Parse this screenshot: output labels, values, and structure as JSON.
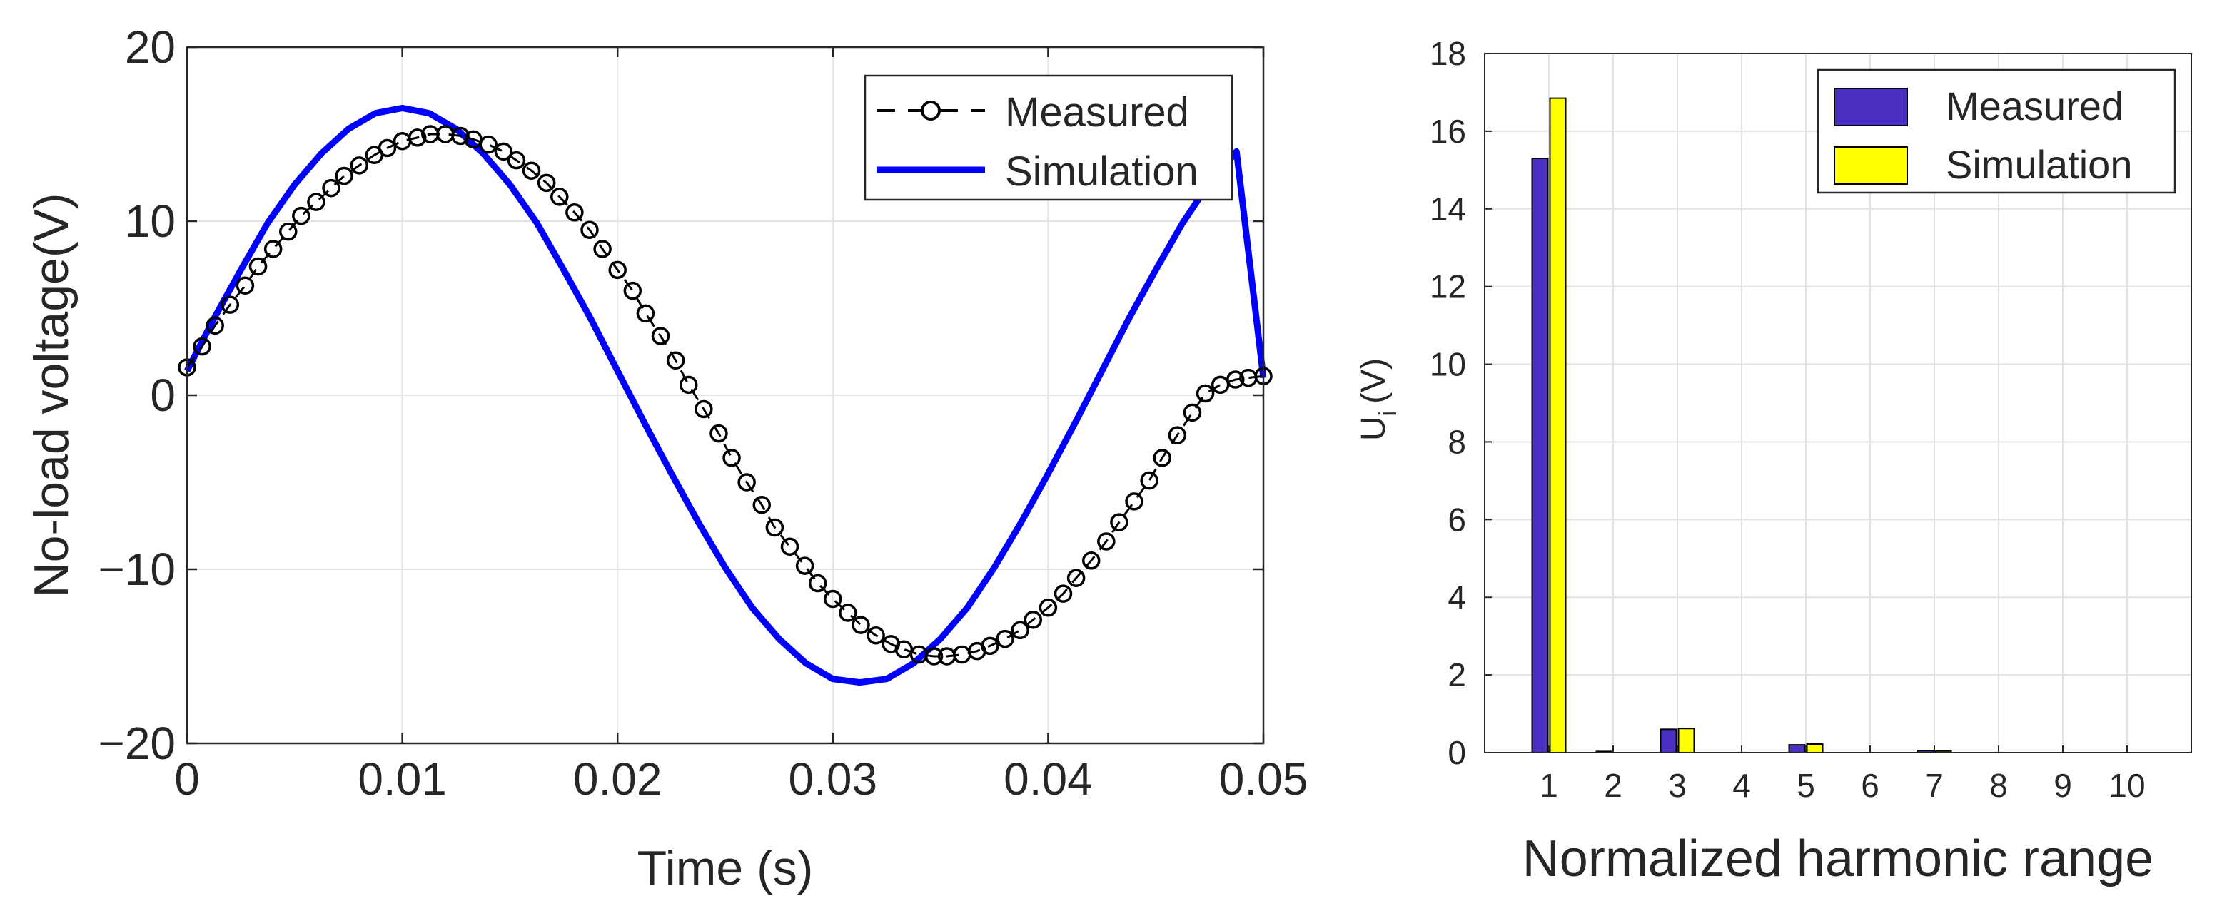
{
  "chart_data": [
    {
      "type": "line",
      "title": "",
      "xlabel": "Time (s)",
      "ylabel": "No-load voltage(V)",
      "xlim": [
        0,
        0.05
      ],
      "ylim": [
        -20,
        20
      ],
      "xticks": [
        0,
        0.01,
        0.02,
        0.03,
        0.04,
        0.05
      ],
      "xtick_labels": [
        "0",
        "0.01",
        "0.02",
        "0.03",
        "0.04",
        "0.05"
      ],
      "yticks": [
        -20,
        -10,
        0,
        10,
        20
      ],
      "ytick_labels": [
        "−20",
        "−10",
        "0",
        "10",
        "20"
      ],
      "grid": true,
      "legend_position": "top-right",
      "series": [
        {
          "name": "Measured",
          "style": "dashed-circle",
          "color": "#000000",
          "x": [
            0,
            0.0007,
            0.0013,
            0.002,
            0.0027,
            0.0033,
            0.004,
            0.0047,
            0.0053,
            0.006,
            0.0067,
            0.0073,
            0.008,
            0.0087,
            0.0093,
            0.01,
            0.0107,
            0.0113,
            0.012,
            0.0127,
            0.0133,
            0.014,
            0.0147,
            0.0153,
            0.016,
            0.0167,
            0.0173,
            0.018,
            0.0187,
            0.0193,
            0.02,
            0.0207,
            0.0213,
            0.022,
            0.0227,
            0.0233,
            0.024,
            0.0247,
            0.0253,
            0.026,
            0.0267,
            0.0273,
            0.028,
            0.0287,
            0.0293,
            0.03,
            0.0307,
            0.0313,
            0.032,
            0.0327,
            0.0333,
            0.034,
            0.0347,
            0.0353,
            0.036,
            0.0367,
            0.0373,
            0.038,
            0.0387,
            0.0393,
            0.04,
            0.0407,
            0.0413,
            0.042,
            0.0427,
            0.0433,
            0.044,
            0.0447,
            0.0453,
            0.046,
            0.0467,
            0.0473,
            0.048,
            0.0487,
            0.0493,
            0.05
          ],
          "y": [
            1.6,
            2.8,
            4.0,
            5.2,
            6.3,
            7.4,
            8.4,
            9.4,
            10.3,
            11.1,
            11.9,
            12.6,
            13.2,
            13.8,
            14.2,
            14.6,
            14.8,
            15.0,
            15.0,
            14.9,
            14.7,
            14.4,
            14.0,
            13.5,
            12.9,
            12.2,
            11.4,
            10.5,
            9.5,
            8.4,
            7.2,
            6.0,
            4.7,
            3.4,
            2.0,
            0.6,
            -0.8,
            -2.2,
            -3.6,
            -5.0,
            -6.3,
            -7.6,
            -8.7,
            -9.8,
            -10.8,
            -11.7,
            -12.5,
            -13.2,
            -13.8,
            -14.3,
            -14.6,
            -14.9,
            -15.0,
            -15.0,
            -14.9,
            -14.7,
            -14.4,
            -14.0,
            -13.5,
            -12.9,
            -12.2,
            -11.4,
            -10.5,
            -9.5,
            -8.4,
            -7.3,
            -6.1,
            -4.9,
            -3.6,
            -2.3,
            -1.0,
            0.1,
            0.6,
            0.9,
            1.0,
            1.1
          ]
        },
        {
          "name": "Simulation",
          "style": "solid",
          "color": "#0000ff",
          "x": [
            0,
            0.00125,
            0.0025,
            0.00375,
            0.005,
            0.00625,
            0.0075,
            0.00875,
            0.01,
            0.01125,
            0.0125,
            0.01375,
            0.015,
            0.01625,
            0.0175,
            0.01875,
            0.02,
            0.02125,
            0.0225,
            0.02375,
            0.025,
            0.02625,
            0.0275,
            0.02875,
            0.03,
            0.03125,
            0.0325,
            0.03375,
            0.035,
            0.03625,
            0.0375,
            0.03875,
            0.04,
            0.04125,
            0.0425,
            0.04375,
            0.045,
            0.04625,
            0.0475,
            0.04875,
            0.05
          ],
          "y": [
            1.4,
            4.4,
            7.2,
            9.9,
            12.1,
            13.9,
            15.3,
            16.2,
            16.5,
            16.2,
            15.3,
            13.9,
            12.1,
            9.9,
            7.2,
            4.4,
            1.4,
            -1.6,
            -4.5,
            -7.3,
            -9.9,
            -12.2,
            -14.0,
            -15.4,
            -16.3,
            -16.5,
            -16.3,
            -15.4,
            -14.0,
            -12.2,
            -9.9,
            -7.3,
            -4.5,
            -1.6,
            1.4,
            4.4,
            7.2,
            9.9,
            12.2,
            14.0,
            1.0
          ]
        }
      ]
    },
    {
      "type": "bar",
      "title": "",
      "xlabel": "Normalized harmonic range",
      "ylabel": "U",
      "ylabel_subscript": "i",
      "ylabel_unit": "(V)",
      "categories": [
        "1",
        "2",
        "3",
        "4",
        "5",
        "6",
        "7",
        "8",
        "9",
        "10"
      ],
      "ylim": [
        0,
        18
      ],
      "yticks": [
        0,
        2,
        4,
        6,
        8,
        10,
        12,
        14,
        16,
        18
      ],
      "grid": true,
      "legend_position": "top-right",
      "series": [
        {
          "name": "Measured",
          "color": "#4b2fbf",
          "values": [
            15.3,
            0.03,
            0.6,
            0.0,
            0.2,
            0.0,
            0.05,
            0.0,
            0.0,
            0.0
          ]
        },
        {
          "name": "Simulation",
          "color": "#ffff00",
          "values": [
            16.85,
            0.0,
            0.62,
            0.0,
            0.22,
            0.0,
            0.04,
            0.0,
            0.0,
            0.0
          ]
        }
      ]
    }
  ]
}
